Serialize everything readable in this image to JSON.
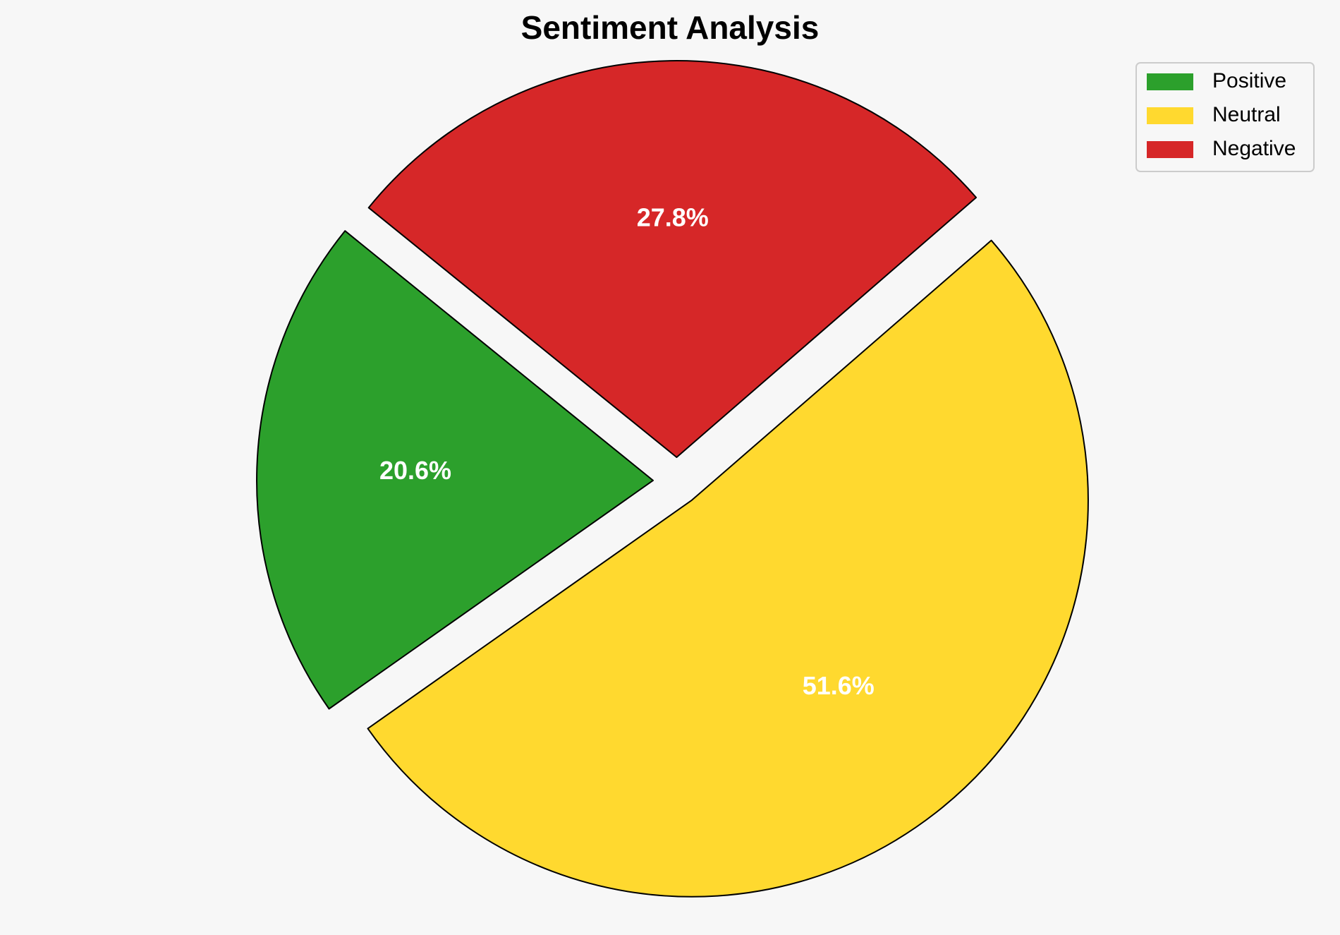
{
  "chart_data": {
    "type": "pie",
    "title": "Sentiment Analysis",
    "categories": [
      "Positive",
      "Neutral",
      "Negative"
    ],
    "values": [
      20.6,
      51.6,
      27.8
    ],
    "value_labels": [
      "20.6%",
      "51.6%",
      "27.8%"
    ],
    "colors": [
      "#2ca02c",
      "#ffd92f",
      "#d62728"
    ],
    "exploded": true,
    "legend": {
      "placement": "top-right",
      "entries": [
        "Positive",
        "Neutral",
        "Negative"
      ]
    }
  }
}
